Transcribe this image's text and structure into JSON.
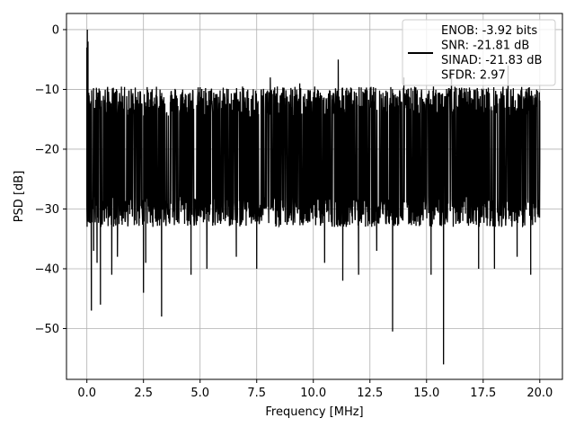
{
  "chart_data": {
    "type": "line",
    "title": "",
    "xlabel": "Frequency [MHz]",
    "ylabel": "PSD [dB]",
    "xlim": [
      -0.9,
      21.0
    ],
    "ylim": [
      -58.5,
      2.7
    ],
    "xticks": [
      0.0,
      2.5,
      5.0,
      7.5,
      10.0,
      12.5,
      15.0,
      17.5,
      20.0
    ],
    "xtick_labels": [
      "0.0",
      "2.5",
      "5.0",
      "7.5",
      "10.0",
      "12.5",
      "15.0",
      "17.5",
      "20.0"
    ],
    "yticks": [
      0,
      -10,
      -20,
      -30,
      -40,
      -50
    ],
    "ytick_labels": [
      "0",
      "−10",
      "−20",
      "−30",
      "−40",
      "−50"
    ],
    "grid": true,
    "legend_position": "top-right",
    "legend_entries": [
      "ENOB: -3.92 bits",
      "SNR: -21.81 dB",
      "SINAD: -21.83 dB",
      "SFDR: 2.97"
    ],
    "series": [
      {
        "color": "#000000",
        "x_range": [
          0.0,
          20.0
        ],
        "typical_range": [
          -30,
          -12
        ],
        "x": [
          0.0,
          0.02,
          0.05,
          0.1,
          0.2,
          0.3,
          0.45,
          0.6,
          1.1,
          1.35,
          1.5,
          2.5,
          2.6,
          2.9,
          3.3,
          3.7,
          4.6,
          5.3,
          6.6,
          7.5,
          8.1,
          9.4,
          10.5,
          11.1,
          11.3,
          12.0,
          12.8,
          13.5,
          14.0,
          15.2,
          15.75,
          16.1,
          17.3,
          18.0,
          18.6,
          19.0,
          19.6,
          20.0
        ],
        "y": [
          -3,
          0,
          -2,
          -11,
          -47,
          -37,
          -39,
          -46,
          -41,
          -38,
          -12,
          -44,
          -39,
          -12,
          -48,
          -11,
          -41,
          -40,
          -38,
          -40,
          -8,
          -9,
          -39,
          -5,
          -42,
          -41,
          -37,
          -50.5,
          -8,
          -41,
          -56,
          -7,
          -40,
          -40,
          -6,
          -38,
          -41,
          -22
        ]
      }
    ]
  }
}
